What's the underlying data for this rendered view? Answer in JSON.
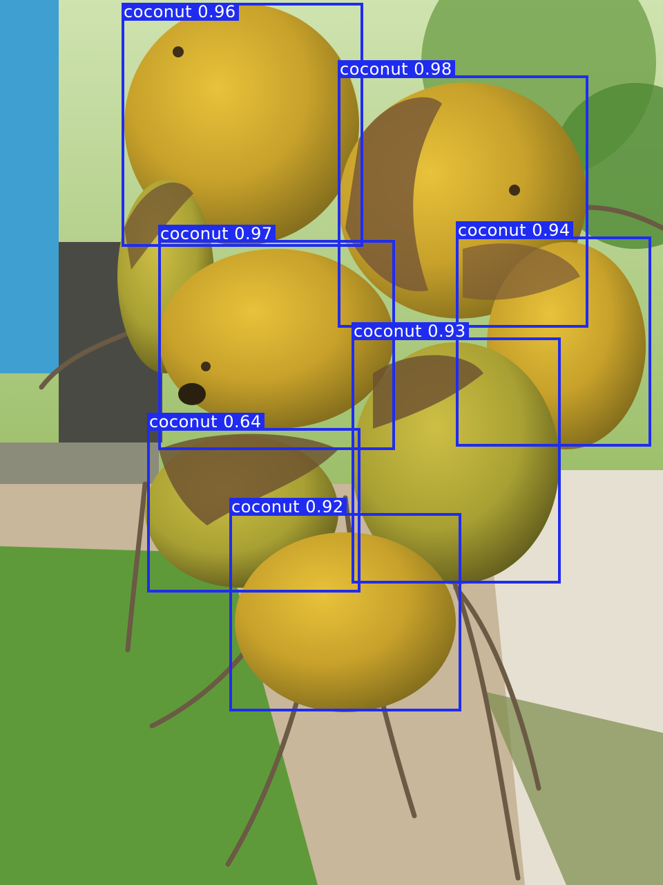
{
  "image": {
    "subject": "bunch of yellow-green coconuts hanging outdoors",
    "background": "garden with grass, dirt path, blue wall and trees"
  },
  "detections": [
    {
      "label": "coconut",
      "score": "0.96"
    },
    {
      "label": "coconut",
      "score": "0.98"
    },
    {
      "label": "coconut",
      "score": "0.97"
    },
    {
      "label": "coconut",
      "score": "0.94"
    },
    {
      "label": "coconut",
      "score": "0.93"
    },
    {
      "label": "coconut",
      "score": "0.64"
    },
    {
      "label": "coconut",
      "score": "0.92"
    }
  ],
  "colors": {
    "box": "#1f2cf0",
    "label_text": "#ffffff"
  }
}
